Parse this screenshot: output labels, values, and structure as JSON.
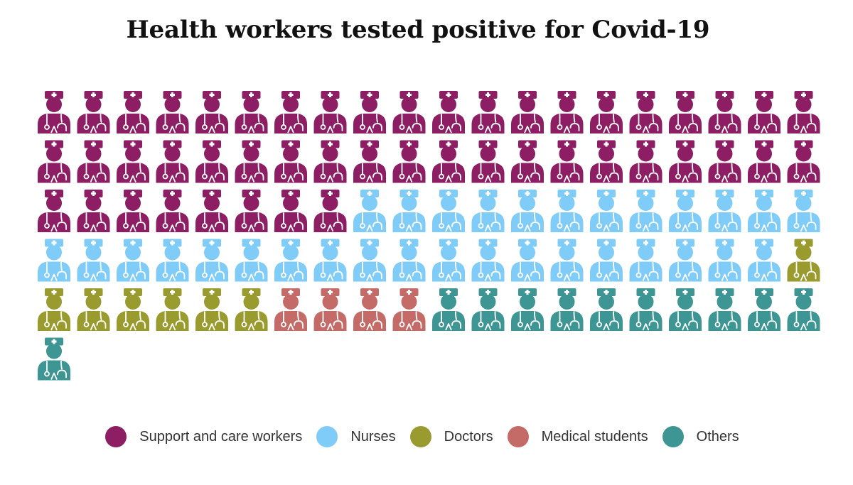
{
  "chart_data": {
    "type": "waffle",
    "title": "Health workers tested positive for Covid-19",
    "unit_icon": "health-worker-icon",
    "per_row": 20,
    "series": [
      {
        "name": "Support and care workers",
        "value": 48,
        "color": "#8E1E64"
      },
      {
        "name": "Nurses",
        "value": 31,
        "color": "#80CCF8"
      },
      {
        "name": "Doctors",
        "value": 7,
        "color": "#9A9B2E"
      },
      {
        "name": "Medical students",
        "value": 4,
        "color": "#C46B68"
      },
      {
        "name": "Others",
        "value": 11,
        "color": "#3D9693"
      }
    ]
  }
}
